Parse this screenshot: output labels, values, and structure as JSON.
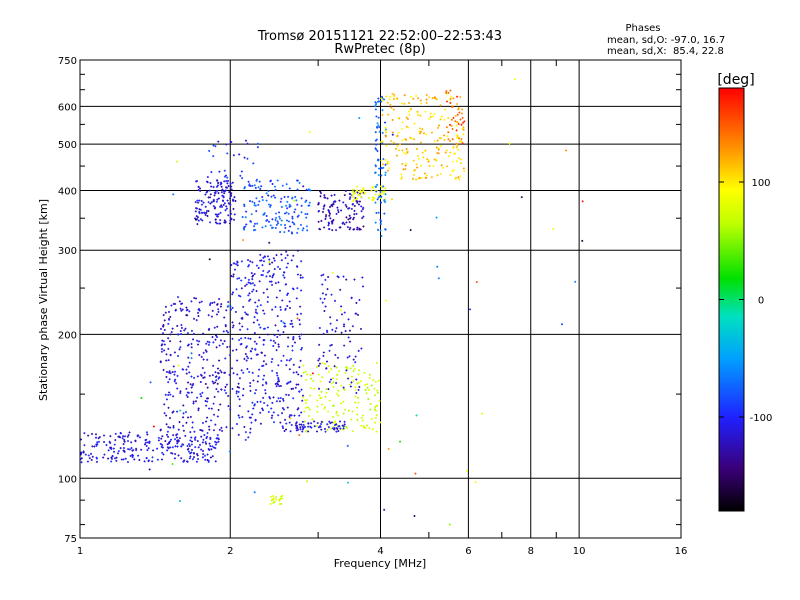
{
  "chart_data": {
    "type": "scatter",
    "title": "Tromsø 20151121 22:52:00–22:53:43",
    "subtitle": "RwPretec (8p)",
    "xlabel": "Frequency [MHz]",
    "ylabel": "Stationary phase Virtual Height [km]",
    "x_scale": "log",
    "y_scale": "log",
    "xlim": [
      1,
      16
    ],
    "ylim": [
      75,
      750
    ],
    "x_ticks": [
      1,
      2,
      4,
      6,
      8,
      10,
      16
    ],
    "x_tick_labels": [
      "1",
      "2",
      "4",
      "6",
      "8",
      "10",
      "16"
    ],
    "x_minor_ticks": [
      3,
      5,
      7,
      9
    ],
    "y_ticks": [
      75,
      100,
      200,
      300,
      400,
      500,
      600,
      750
    ],
    "y_tick_labels": [
      "75",
      "100",
      "200",
      "300",
      "400",
      "500",
      "600",
      "750"
    ],
    "y_minor_ticks": [
      80,
      90,
      150,
      250,
      350,
      450,
      550,
      650,
      700
    ],
    "grid": true,
    "stats": {
      "title": "Phases",
      "line1": "mean, sd,O: -97.0, 16.7",
      "line2": "mean, sd,X:  85.4, 22.8"
    },
    "colorbar": {
      "label": "[deg]",
      "range": [
        -180,
        180
      ],
      "ticks": [
        100,
        0,
        -100
      ],
      "tick_labels": [
        "100",
        "0",
        "-100"
      ],
      "position": "right"
    },
    "clusters": [
      {
        "x": [
          1.0,
          1.9
        ],
        "y": [
          108,
          125
        ],
        "phase": -110,
        "n": 260
      },
      {
        "x": [
          1.45,
          2.0
        ],
        "y": [
          125,
          240
        ],
        "phase": -115,
        "n": 300
      },
      {
        "x": [
          1.7,
          2.05
        ],
        "y": [
          340,
          420
        ],
        "phase": -112,
        "n": 150
      },
      {
        "x": [
          1.8,
          2.3
        ],
        "y": [
          420,
          510
        ],
        "phase": -100,
        "n": 30
      },
      {
        "x": [
          2.0,
          2.25
        ],
        "y": [
          120,
          290
        ],
        "phase": -108,
        "n": 140
      },
      {
        "x": [
          2.25,
          2.8
        ],
        "y": [
          125,
          300
        ],
        "phase": -110,
        "n": 260
      },
      {
        "x": [
          2.1,
          2.9
        ],
        "y": [
          325,
          420
        ],
        "phase": -80,
        "n": 150
      },
      {
        "x": [
          3.0,
          3.7
        ],
        "y": [
          330,
          400
        ],
        "phase": -125,
        "n": 120
      },
      {
        "x": [
          2.8,
          4.0
        ],
        "y": [
          125,
          175
        ],
        "phase": 60,
        "n": 170
      },
      {
        "x": [
          3.0,
          3.7
        ],
        "y": [
          150,
          270
        ],
        "phase": -115,
        "n": 90
      },
      {
        "x": [
          2.7,
          3.4
        ],
        "y": [
          125,
          132
        ],
        "phase": -110,
        "n": 60
      },
      {
        "x": [
          3.5,
          4.1
        ],
        "y": [
          380,
          410
        ],
        "phase": 80,
        "n": 50
      },
      {
        "x": [
          3.9,
          4.1
        ],
        "y": [
          320,
          630
        ],
        "phase": -70,
        "n": 80
      },
      {
        "x": [
          4.0,
          5.9
        ],
        "y": [
          420,
          640
        ],
        "phase": 110,
        "n": 230
      },
      {
        "x": [
          5.4,
          5.9
        ],
        "y": [
          500,
          660
        ],
        "phase": 150,
        "n": 30
      },
      {
        "x": [
          2.4,
          2.55
        ],
        "y": [
          88,
          92
        ],
        "phase": 60,
        "n": 20
      },
      {
        "x": [
          1.3,
          10.5
        ],
        "y": [
          80,
          700
        ],
        "phase": 0,
        "n": 70
      }
    ]
  }
}
